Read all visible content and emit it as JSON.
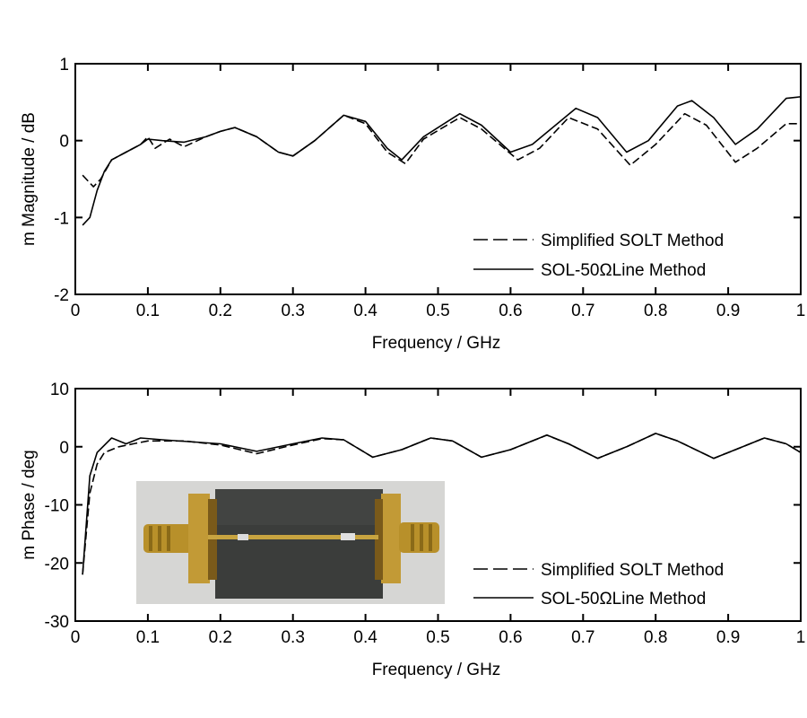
{
  "chart_data": [
    {
      "type": "line",
      "title": "",
      "xlabel": "Frequency / GHz",
      "ylabel": "m Magnitude / dB",
      "xlim": [
        0,
        1
      ],
      "ylim": [
        -2,
        1
      ],
      "xticks": [
        0,
        0.1,
        0.2,
        0.3,
        0.4,
        0.5,
        0.6,
        0.7,
        0.8,
        0.9,
        1
      ],
      "xtick_labels": [
        "0",
        "0.1",
        "0.2",
        "0.3",
        "0.4",
        "0.5",
        "0.6",
        "0.7",
        "0.8",
        "0.9",
        "1"
      ],
      "yticks": [
        -2,
        -1,
        0,
        1
      ],
      "ytick_labels": [
        "-2",
        "-1",
        "0",
        "1"
      ],
      "grid": false,
      "legend_position": "bottom-right",
      "series": [
        {
          "name": "Simplified SOLT Method",
          "style": "dashed",
          "x": [
            0.01,
            0.025,
            0.035,
            0.05,
            0.07,
            0.09,
            0.1,
            0.11,
            0.13,
            0.15,
            0.18,
            0.2,
            0.22,
            0.25,
            0.28,
            0.3,
            0.33,
            0.37,
            0.4,
            0.43,
            0.455,
            0.48,
            0.53,
            0.56,
            0.61,
            0.64,
            0.68,
            0.72,
            0.765,
            0.8,
            0.84,
            0.87,
            0.91,
            0.94,
            0.98,
            1.0
          ],
          "y": [
            -0.45,
            -0.6,
            -0.5,
            -0.25,
            -0.15,
            -0.05,
            0.05,
            -0.1,
            0.02,
            -0.08,
            0.05,
            0.12,
            0.17,
            0.05,
            -0.15,
            -0.2,
            0.0,
            0.33,
            0.22,
            -0.15,
            -0.3,
            0.02,
            0.3,
            0.15,
            -0.25,
            -0.1,
            0.3,
            0.15,
            -0.32,
            -0.05,
            0.35,
            0.2,
            -0.28,
            -0.1,
            0.22,
            0.22
          ]
        },
        {
          "name": "SOL-50ΩLine Method",
          "style": "solid",
          "x": [
            0.01,
            0.02,
            0.03,
            0.04,
            0.05,
            0.07,
            0.09,
            0.1,
            0.12,
            0.15,
            0.18,
            0.2,
            0.22,
            0.25,
            0.28,
            0.3,
            0.33,
            0.37,
            0.4,
            0.43,
            0.45,
            0.48,
            0.53,
            0.56,
            0.6,
            0.63,
            0.69,
            0.72,
            0.76,
            0.79,
            0.83,
            0.85,
            0.88,
            0.91,
            0.94,
            0.98,
            1.0
          ],
          "y": [
            -1.1,
            -1.0,
            -0.65,
            -0.4,
            -0.25,
            -0.15,
            -0.05,
            0.02,
            0.0,
            -0.02,
            0.05,
            0.12,
            0.17,
            0.05,
            -0.15,
            -0.2,
            0.0,
            0.33,
            0.25,
            -0.1,
            -0.25,
            0.05,
            0.35,
            0.2,
            -0.15,
            -0.05,
            0.42,
            0.3,
            -0.15,
            0.0,
            0.45,
            0.52,
            0.3,
            -0.05,
            0.15,
            0.55,
            0.57
          ]
        }
      ]
    },
    {
      "type": "line",
      "title": "",
      "xlabel": "Frequency / GHz",
      "ylabel": "m Phase / deg",
      "xlim": [
        0,
        1
      ],
      "ylim": [
        -30,
        10
      ],
      "xticks": [
        0,
        0.1,
        0.2,
        0.3,
        0.4,
        0.5,
        0.6,
        0.7,
        0.8,
        0.9,
        1
      ],
      "xtick_labels": [
        "0",
        "0.1",
        "0.2",
        "0.3",
        "0.4",
        "0.5",
        "0.6",
        "0.7",
        "0.8",
        "0.9",
        "1"
      ],
      "yticks": [
        -30,
        -20,
        -10,
        0,
        10
      ],
      "ytick_labels": [
        "-30",
        "-20",
        "-10",
        "0",
        "10"
      ],
      "grid": false,
      "legend_position": "bottom-right",
      "series": [
        {
          "name": "Simplified SOLT Method",
          "style": "dashed",
          "x": [
            0.01,
            0.02,
            0.03,
            0.04,
            0.06,
            0.08,
            0.1,
            0.15,
            0.2,
            0.25,
            0.3,
            0.34,
            0.37,
            0.41,
            0.45,
            0.49,
            0.52,
            0.56,
            0.6,
            0.65,
            0.68,
            0.72,
            0.76,
            0.8,
            0.83,
            0.88,
            0.92,
            0.95,
            0.98,
            1.0
          ],
          "y": [
            -22,
            -8,
            -3,
            -1,
            0,
            0.5,
            1,
            1,
            0.3,
            -1.2,
            0.3,
            1.4,
            1.2,
            -1.8,
            -0.5,
            1.5,
            1.0,
            -1.8,
            -0.5,
            2,
            0.5,
            -2,
            0,
            2.3,
            1,
            -2,
            0,
            1.5,
            0.5,
            -1
          ]
        },
        {
          "name": "SOL-50ΩLine Method",
          "style": "solid",
          "x": [
            0.01,
            0.02,
            0.03,
            0.05,
            0.07,
            0.09,
            0.12,
            0.2,
            0.25,
            0.3,
            0.34,
            0.37,
            0.41,
            0.45,
            0.49,
            0.52,
            0.56,
            0.6,
            0.65,
            0.68,
            0.72,
            0.76,
            0.8,
            0.83,
            0.88,
            0.92,
            0.95,
            0.98,
            1.0
          ],
          "y": [
            -22,
            -5,
            -1,
            1.5,
            0.5,
            1.5,
            1.2,
            0.5,
            -0.8,
            0.5,
            1.5,
            1.2,
            -1.8,
            -0.5,
            1.5,
            1.0,
            -1.8,
            -0.5,
            2,
            0.5,
            -2,
            0,
            2.3,
            1,
            -2,
            0,
            1.5,
            0.5,
            -1
          ]
        }
      ]
    }
  ],
  "colors": {
    "line": "#000000"
  }
}
